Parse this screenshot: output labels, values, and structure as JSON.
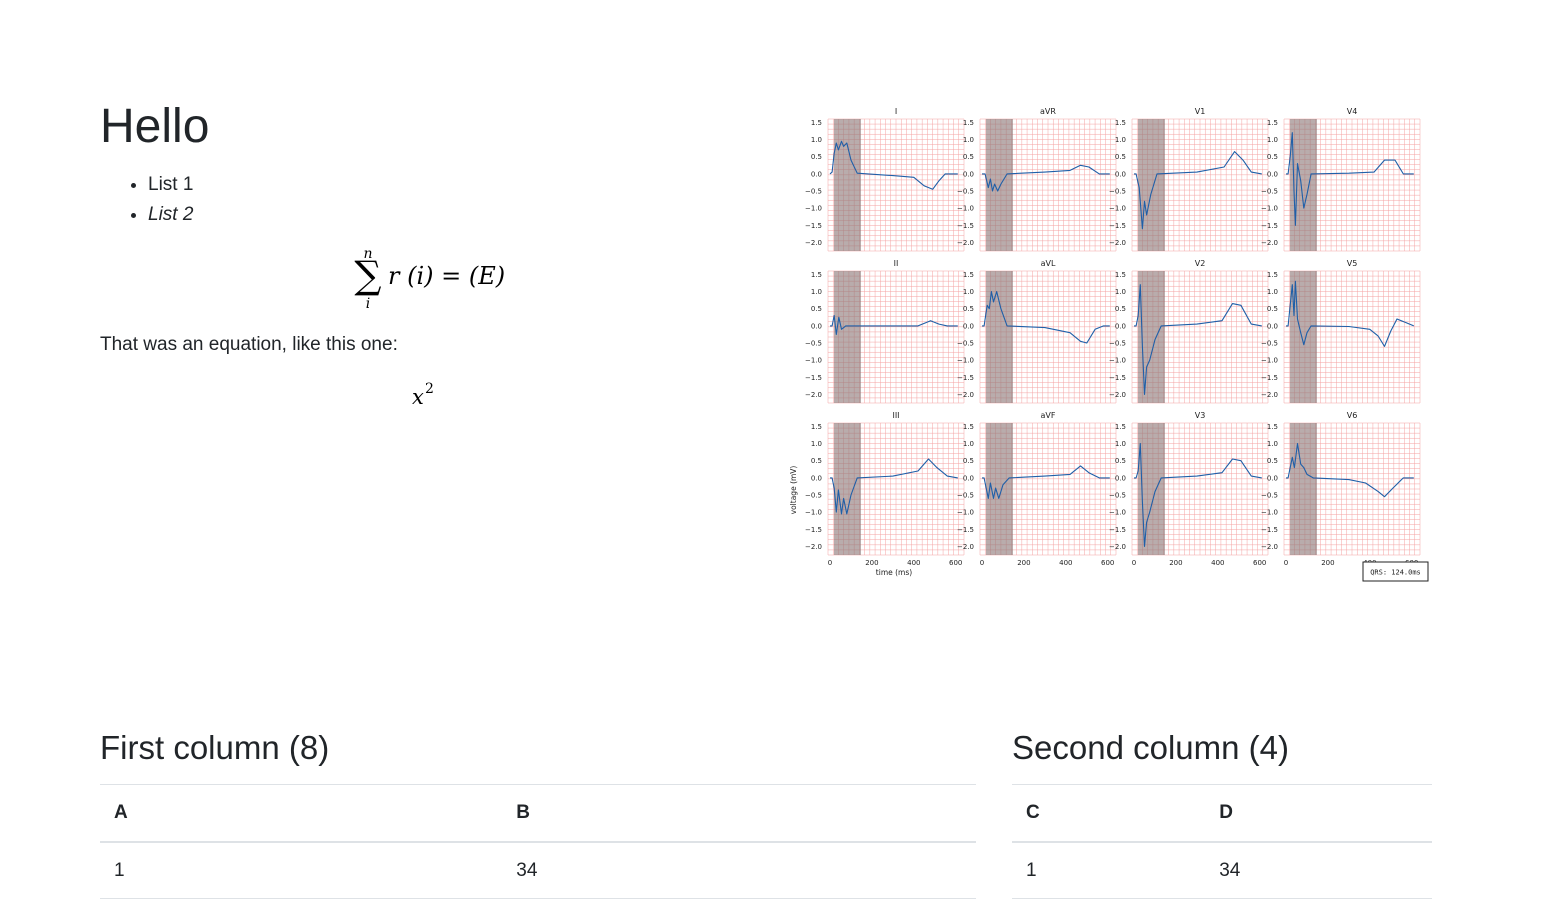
{
  "heading": "Hello",
  "list_items": [
    "List 1",
    "List 2"
  ],
  "equation": {
    "sum_upper": "n",
    "sum_lower": "i",
    "body": "r (i) = (E)"
  },
  "paragraph": "That was an equation, like this one:",
  "equation2": {
    "base": "x",
    "exponent": "2"
  },
  "ecg_figure": {
    "ylabel": "voltage (mV)",
    "xlabel": "time (ms)",
    "qrs_label": "QRS: 124.0ms",
    "y_ticks": [
      "1.5",
      "1.0",
      "0.5",
      "0.0",
      "−0.5",
      "−1.0",
      "−1.5",
      "−2.0"
    ],
    "x_ticks": [
      "0",
      "200",
      "400",
      "600"
    ],
    "grid_color": "#f4a3a3",
    "trace_color": "#1f5fa8",
    "qrs_shade_color": "#8a7575",
    "leads": [
      "I",
      "aVR",
      "V1",
      "V4",
      "II",
      "aVL",
      "V2",
      "V5",
      "III",
      "aVF",
      "V3",
      "V6"
    ]
  },
  "tables": {
    "left": {
      "title": "First column (8)",
      "headers": [
        "A",
        "B"
      ],
      "rows": [
        [
          "1",
          "34"
        ]
      ]
    },
    "right": {
      "title": "Second column (4)",
      "headers": [
        "C",
        "D"
      ],
      "rows": [
        [
          "1",
          "34"
        ]
      ]
    }
  }
}
